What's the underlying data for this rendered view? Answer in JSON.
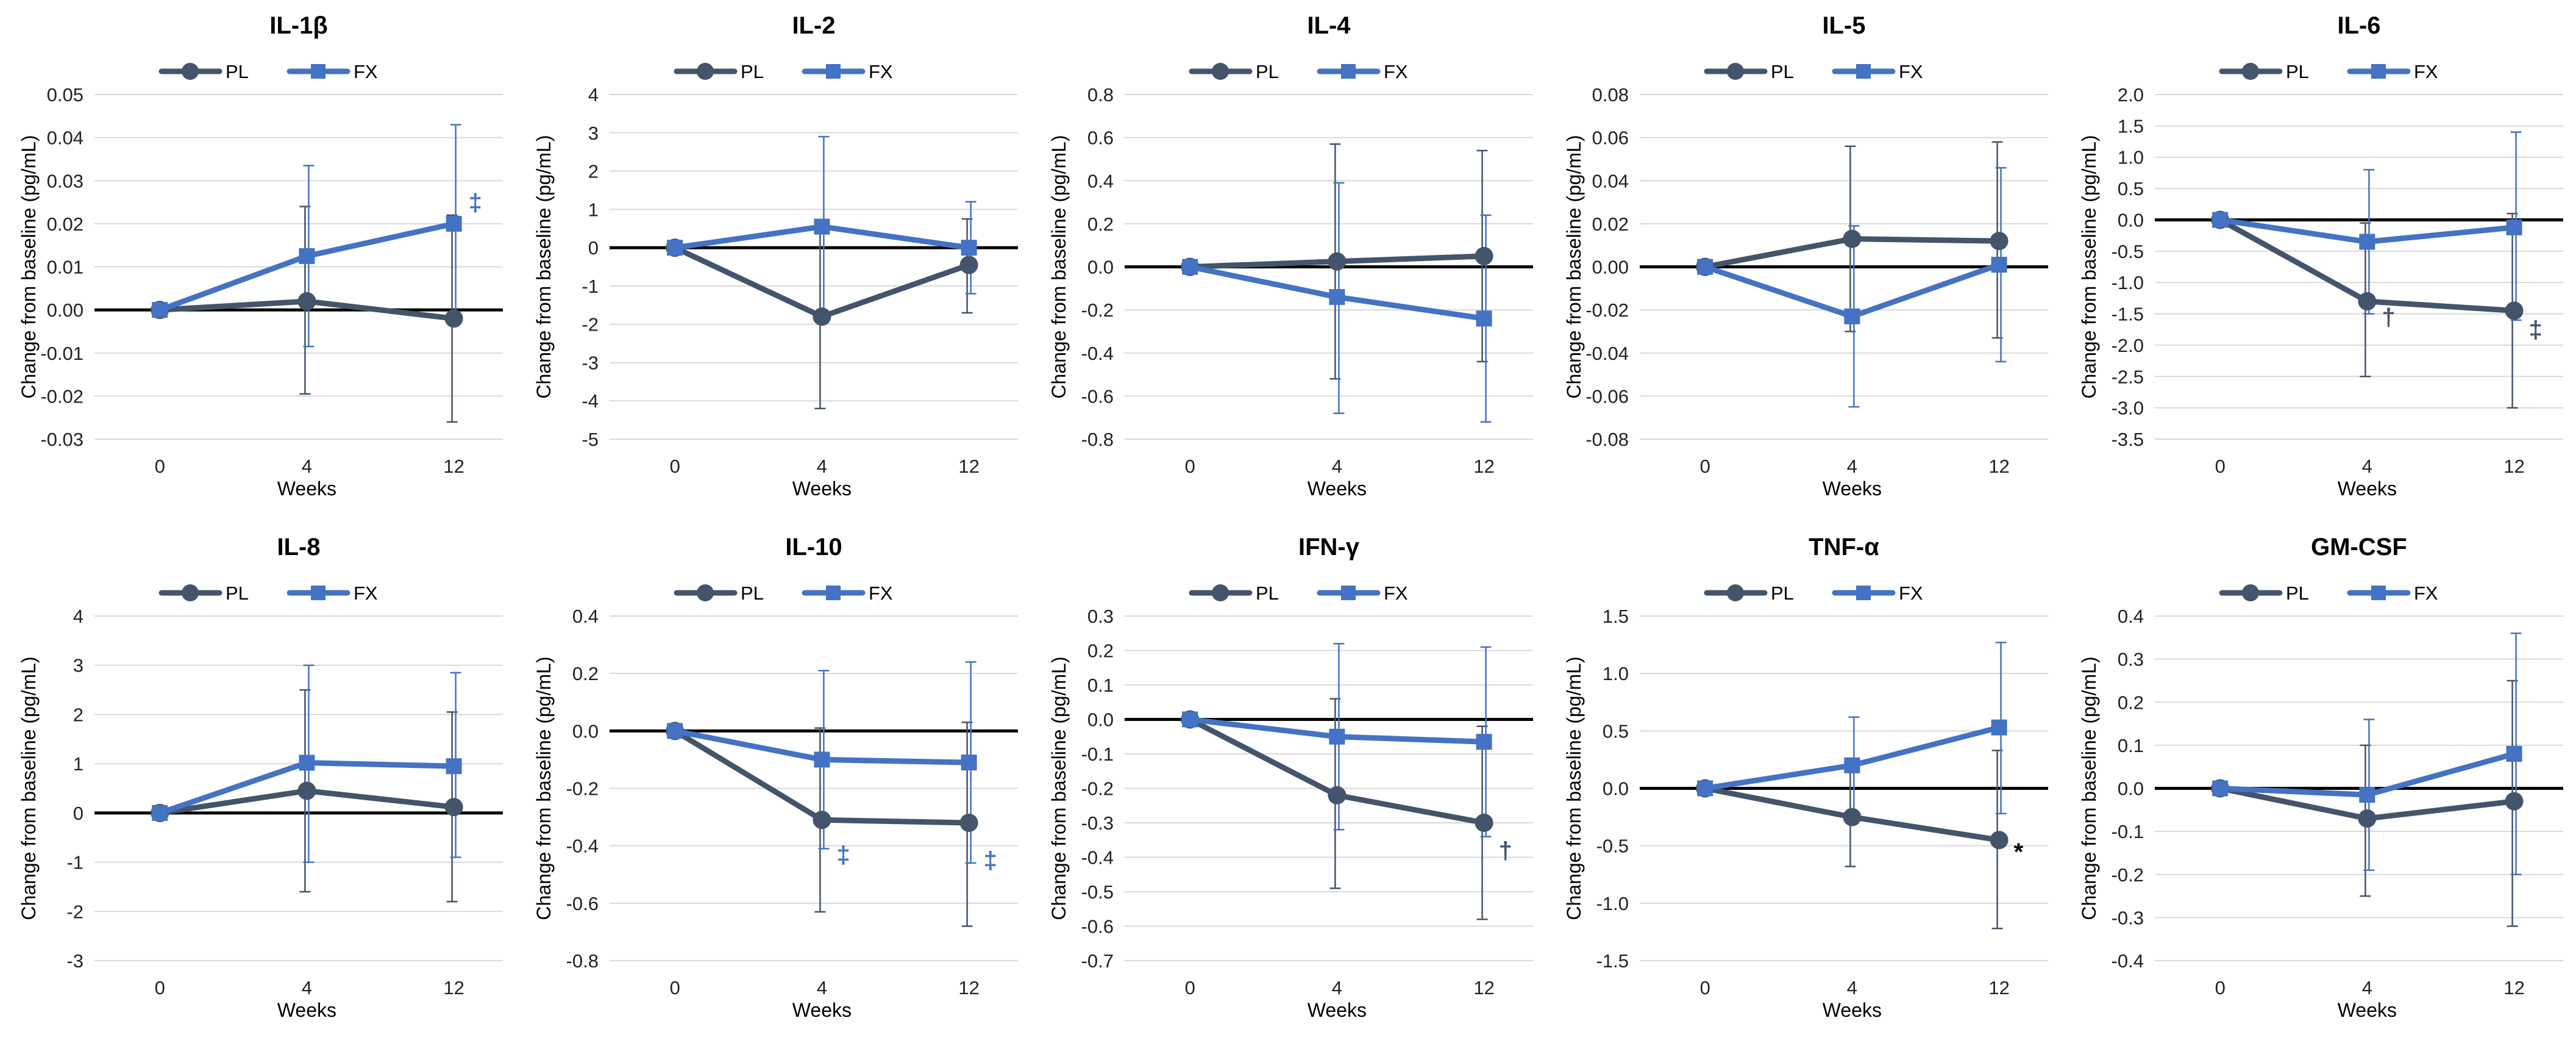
{
  "chart_data": [
    {
      "type": "line",
      "title": "IL-1β",
      "categories": [
        "0",
        "4",
        "12"
      ],
      "xlabel": "Weeks",
      "ylabel": "Change from baseline (pg/mL)",
      "ylim": [
        -0.03,
        0.05
      ],
      "yticks": [
        "-0.03",
        "-0.02",
        "-0.01",
        "0.00",
        "0.01",
        "0.02",
        "0.03",
        "0.04",
        "0.05"
      ],
      "legend": [
        "PL",
        "FX"
      ],
      "series": [
        {
          "name": "PL",
          "color": "#44546a",
          "marker": "circle",
          "values": [
            0,
            0.002,
            -0.002
          ],
          "err_low": [
            0,
            -0.0195,
            -0.026
          ],
          "err_high": [
            0,
            0.024,
            0.022
          ]
        },
        {
          "name": "FX",
          "color": "#4472c4",
          "marker": "square",
          "values": [
            0,
            0.0125,
            0.02
          ],
          "err_low": [
            0,
            -0.0085,
            -0.0025
          ],
          "err_high": [
            0,
            0.0335,
            0.043
          ]
        }
      ],
      "annotations": [
        {
          "text": "‡",
          "color": "#4472c4",
          "category": 2,
          "y": 0.025
        }
      ]
    },
    {
      "type": "line",
      "title": "IL-2",
      "categories": [
        "0",
        "4",
        "12"
      ],
      "xlabel": "Weeks",
      "ylabel": "Change from baseline (pg/mL)",
      "ylim": [
        -5,
        4
      ],
      "yticks": [
        "-5",
        "-4",
        "-3",
        "-2",
        "-1",
        "0",
        "1",
        "2",
        "3",
        "4"
      ],
      "legend": [
        "PL",
        "FX"
      ],
      "series": [
        {
          "name": "PL",
          "color": "#44546a",
          "marker": "circle",
          "values": [
            0,
            -1.8,
            -0.45
          ],
          "err_low": [
            0,
            -4.2,
            -1.7
          ],
          "err_high": [
            0,
            0.6,
            0.75
          ]
        },
        {
          "name": "FX",
          "color": "#4472c4",
          "marker": "square",
          "values": [
            0,
            0.55,
            0.0
          ],
          "err_low": [
            0,
            -1.8,
            -1.2
          ],
          "err_high": [
            0,
            2.9,
            1.2
          ]
        }
      ],
      "annotations": []
    },
    {
      "type": "line",
      "title": "IL-4",
      "categories": [
        "0",
        "4",
        "12"
      ],
      "xlabel": "Weeks",
      "ylabel": "Change from baseline (pg/mL)",
      "ylim": [
        -0.8,
        0.8
      ],
      "yticks": [
        "-0.8",
        "-0.6",
        "-0.4",
        "-0.2",
        "0.0",
        "0.2",
        "0.4",
        "0.6",
        "0.8"
      ],
      "legend": [
        "PL",
        "FX"
      ],
      "series": [
        {
          "name": "PL",
          "color": "#44546a",
          "marker": "circle",
          "values": [
            0,
            0.025,
            0.05
          ],
          "err_low": [
            0,
            -0.52,
            -0.44
          ],
          "err_high": [
            0,
            0.57,
            0.54
          ]
        },
        {
          "name": "FX",
          "color": "#4472c4",
          "marker": "square",
          "values": [
            0,
            -0.14,
            -0.24
          ],
          "err_low": [
            0,
            -0.68,
            -0.72
          ],
          "err_high": [
            0,
            0.39,
            0.24
          ]
        }
      ],
      "annotations": []
    },
    {
      "type": "line",
      "title": "IL-5",
      "categories": [
        "0",
        "4",
        "12"
      ],
      "xlabel": "Weeks",
      "ylabel": "Change from baseline (pg/mL)",
      "ylim": [
        -0.08,
        0.08
      ],
      "yticks": [
        "-0.08",
        "-0.06",
        "-0.04",
        "-0.02",
        "0.00",
        "0.02",
        "0.04",
        "0.06",
        "0.08"
      ],
      "legend": [
        "PL",
        "FX"
      ],
      "series": [
        {
          "name": "PL",
          "color": "#44546a",
          "marker": "circle",
          "values": [
            0,
            0.013,
            0.012
          ],
          "err_low": [
            0,
            -0.03,
            -0.033
          ],
          "err_high": [
            0,
            0.056,
            0.058
          ]
        },
        {
          "name": "FX",
          "color": "#4472c4",
          "marker": "square",
          "values": [
            0,
            -0.023,
            0.001
          ],
          "err_low": [
            0,
            -0.065,
            -0.044
          ],
          "err_high": [
            0,
            0.019,
            0.046
          ]
        }
      ],
      "annotations": []
    },
    {
      "type": "line",
      "title": "IL-6",
      "categories": [
        "0",
        "4",
        "12"
      ],
      "xlabel": "Weeks",
      "ylabel": "Change from baseline (pg/mL)",
      "ylim": [
        -3.5,
        2.0
      ],
      "yticks": [
        "-3.5",
        "-3.0",
        "-2.5",
        "-2.0",
        "-1.5",
        "-1.0",
        "-0.5",
        "0.0",
        "0.5",
        "1.0",
        "1.5",
        "2.0"
      ],
      "legend": [
        "PL",
        "FX"
      ],
      "series": [
        {
          "name": "PL",
          "color": "#44546a",
          "marker": "circle",
          "values": [
            0,
            -1.3,
            -1.45
          ],
          "err_low": [
            0,
            -2.5,
            -3.0
          ],
          "err_high": [
            0,
            -0.05,
            0.1
          ]
        },
        {
          "name": "FX",
          "color": "#4472c4",
          "marker": "square",
          "values": [
            0,
            -0.35,
            -0.12
          ],
          "err_low": [
            0,
            -1.5,
            -1.6
          ],
          "err_high": [
            0,
            0.8,
            1.4
          ]
        }
      ],
      "annotations": [
        {
          "text": "†",
          "color": "#44546a",
          "category": 1,
          "y": -1.55
        },
        {
          "text": "‡",
          "color": "#44546a",
          "category": 2,
          "y": -1.75
        }
      ]
    },
    {
      "type": "line",
      "title": "IL-8",
      "categories": [
        "0",
        "4",
        "12"
      ],
      "xlabel": "Weeks",
      "ylabel": "Change from baseline (pg/mL)",
      "ylim": [
        -3,
        4
      ],
      "yticks": [
        "-3",
        "-2",
        "-1",
        "0",
        "1",
        "2",
        "3",
        "4"
      ],
      "legend": [
        "PL",
        "FX"
      ],
      "series": [
        {
          "name": "PL",
          "color": "#44546a",
          "marker": "circle",
          "values": [
            0,
            0.45,
            0.12
          ],
          "err_low": [
            0,
            -1.6,
            -1.8
          ],
          "err_high": [
            0,
            2.5,
            2.05
          ]
        },
        {
          "name": "FX",
          "color": "#4472c4",
          "marker": "square",
          "values": [
            0,
            1.02,
            0.95
          ],
          "err_low": [
            0,
            -1.0,
            -0.9
          ],
          "err_high": [
            0,
            3.0,
            2.85
          ]
        }
      ],
      "annotations": []
    },
    {
      "type": "line",
      "title": "IL-10",
      "categories": [
        "0",
        "4",
        "12"
      ],
      "xlabel": "Weeks",
      "ylabel": "Change from baseline (pg/mL)",
      "ylim": [
        -0.8,
        0.4
      ],
      "yticks": [
        "-0.8",
        "-0.6",
        "-0.4",
        "-0.2",
        "0.0",
        "0.2",
        "0.4"
      ],
      "legend": [
        "PL",
        "FX"
      ],
      "series": [
        {
          "name": "PL",
          "color": "#44546a",
          "marker": "circle",
          "values": [
            0,
            -0.31,
            -0.32
          ],
          "err_low": [
            0,
            -0.63,
            -0.68
          ],
          "err_high": [
            0,
            0.01,
            0.03
          ]
        },
        {
          "name": "FX",
          "color": "#4472c4",
          "marker": "square",
          "values": [
            0,
            -0.1,
            -0.11
          ],
          "err_low": [
            0,
            -0.41,
            -0.46
          ],
          "err_high": [
            0,
            0.21,
            0.24
          ]
        }
      ],
      "annotations": [
        {
          "text": "‡",
          "color": "#4472c4",
          "category": 1,
          "y": -0.43
        },
        {
          "text": "‡",
          "color": "#4472c4",
          "category": 2,
          "y": -0.45
        }
      ]
    },
    {
      "type": "line",
      "title": "IFN-γ",
      "categories": [
        "0",
        "4",
        "12"
      ],
      "xlabel": "Weeks",
      "ylabel": "Change from baseline (pg/mL)",
      "ylim": [
        -0.7,
        0.3
      ],
      "yticks": [
        "-0.7",
        "-0.6",
        "-0.5",
        "-0.4",
        "-0.3",
        "-0.2",
        "-0.1",
        "0.0",
        "0.1",
        "0.2",
        "0.3"
      ],
      "legend": [
        "PL",
        "FX"
      ],
      "series": [
        {
          "name": "PL",
          "color": "#44546a",
          "marker": "circle",
          "values": [
            0,
            -0.22,
            -0.3
          ],
          "err_low": [
            0,
            -0.49,
            -0.58
          ],
          "err_high": [
            0,
            0.06,
            -0.02
          ]
        },
        {
          "name": "FX",
          "color": "#4472c4",
          "marker": "square",
          "values": [
            0,
            -0.05,
            -0.065
          ],
          "err_low": [
            0,
            -0.32,
            -0.34
          ],
          "err_high": [
            0,
            0.22,
            0.21
          ]
        }
      ],
      "annotations": [
        {
          "text": "†",
          "color": "#44546a",
          "category": 2,
          "y": -0.38
        }
      ]
    },
    {
      "type": "line",
      "title": "TNF-α",
      "categories": [
        "0",
        "4",
        "12"
      ],
      "xlabel": "Weeks",
      "ylabel": "Change from baseline (pg/mL)",
      "ylim": [
        -1.5,
        1.5
      ],
      "yticks": [
        "-1.5",
        "-1.0",
        "-0.5",
        "0.0",
        "0.5",
        "1.0",
        "1.5"
      ],
      "legend": [
        "PL",
        "FX"
      ],
      "series": [
        {
          "name": "PL",
          "color": "#44546a",
          "marker": "circle",
          "values": [
            0,
            -0.25,
            -0.45
          ],
          "err_low": [
            0,
            -0.68,
            -1.22
          ],
          "err_high": [
            0,
            0.18,
            0.33
          ]
        },
        {
          "name": "FX",
          "color": "#4472c4",
          "marker": "square",
          "values": [
            0,
            0.2,
            0.53
          ],
          "err_low": [
            0,
            -0.22,
            -0.22
          ],
          "err_high": [
            0,
            0.62,
            1.27
          ]
        }
      ],
      "annotations": [
        {
          "text": "*",
          "color": "#000000",
          "category": 2,
          "y": -0.55
        }
      ]
    },
    {
      "type": "line",
      "title": "GM-CSF",
      "categories": [
        "0",
        "4",
        "12"
      ],
      "xlabel": "Weeks",
      "ylabel": "Change from baseline (pg/mL)",
      "ylim": [
        -0.4,
        0.4
      ],
      "yticks": [
        "-0.4",
        "-0.3",
        "-0.2",
        "-0.1",
        "0.0",
        "0.1",
        "0.2",
        "0.3",
        "0.4"
      ],
      "legend": [
        "PL",
        "FX"
      ],
      "series": [
        {
          "name": "PL",
          "color": "#44546a",
          "marker": "circle",
          "values": [
            0,
            -0.07,
            -0.03
          ],
          "err_low": [
            0,
            -0.25,
            -0.32
          ],
          "err_high": [
            0,
            0.1,
            0.25
          ]
        },
        {
          "name": "FX",
          "color": "#4472c4",
          "marker": "square",
          "values": [
            0,
            -0.015,
            0.08
          ],
          "err_low": [
            0,
            -0.19,
            -0.2
          ],
          "err_high": [
            0,
            0.16,
            0.36
          ]
        }
      ],
      "annotations": []
    }
  ]
}
